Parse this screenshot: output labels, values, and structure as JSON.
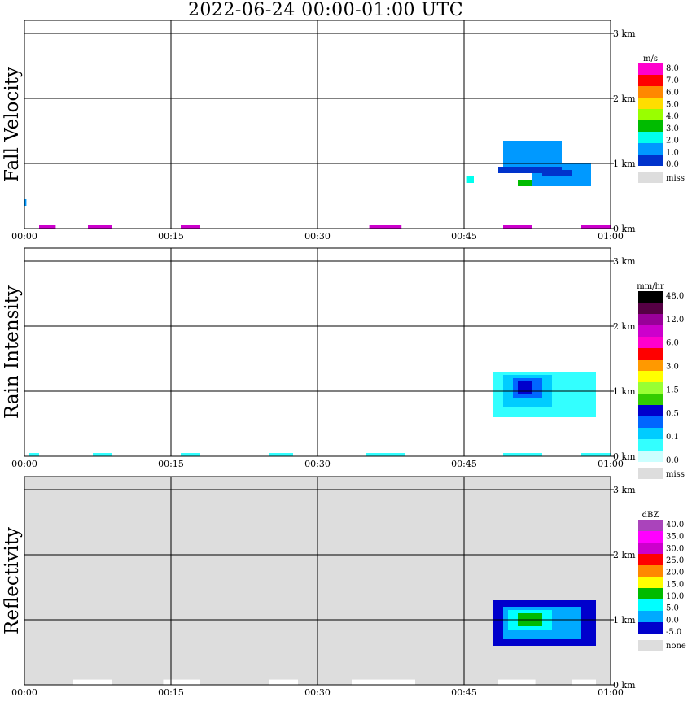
{
  "title": "2022-06-24   00:00-01:00 UTC",
  "chart_data": [
    {
      "type": "heatmap",
      "panel": "fall_velocity",
      "ylabel": "Fall Velocity",
      "x_ticks": [
        "00:00",
        "00:15",
        "00:30",
        "00:45",
        "01:00"
      ],
      "y_ticks": [
        "0 km",
        "1 km",
        "2 km",
        "3 km"
      ],
      "xlim": [
        0,
        60
      ],
      "ylim": [
        0,
        3.2
      ],
      "grid": true,
      "background": "#ffffff",
      "colorbar": {
        "unit": "m/s",
        "colors": [
          "#0033cc",
          "#0099ff",
          "#00ffee",
          "#00bb00",
          "#99ff00",
          "#ffdd00",
          "#ff8800",
          "#ff0000",
          "#ff00cc"
        ],
        "labels": [
          "0.0",
          "1.0",
          "2.0",
          "3.0",
          "4.0",
          "5.0",
          "6.0",
          "7.0",
          "8.0"
        ],
        "miss_color": "#dddddd",
        "miss_label": "miss"
      },
      "regions": [
        {
          "t": [
            49,
            55
          ],
          "h": [
            0.9,
            1.35
          ],
          "color": "#0099ff"
        },
        {
          "t": [
            52,
            58
          ],
          "h": [
            0.65,
            1.0
          ],
          "color": "#0099ff"
        },
        {
          "t": [
            48.5,
            55
          ],
          "h": [
            0.85,
            0.95
          ],
          "color": "#0033cc"
        },
        {
          "t": [
            53,
            56
          ],
          "h": [
            0.8,
            0.9
          ],
          "color": "#0033cc"
        },
        {
          "t": [
            50.5,
            52
          ],
          "h": [
            0.65,
            0.75
          ],
          "color": "#00bb00"
        },
        {
          "t": [
            45.3,
            46
          ],
          "h": [
            0.7,
            0.8
          ],
          "color": "#00ffee"
        },
        {
          "t": [
            0,
            0.2
          ],
          "h": [
            0.35,
            0.45
          ],
          "color": "#0099ff"
        },
        {
          "t": [
            1.5,
            3.2
          ],
          "h": [
            0,
            0.05
          ],
          "color": "#cc00cc"
        },
        {
          "t": [
            6.5,
            9
          ],
          "h": [
            0,
            0.05
          ],
          "color": "#cc00cc"
        },
        {
          "t": [
            16,
            18
          ],
          "h": [
            0,
            0.05
          ],
          "color": "#cc00cc"
        },
        {
          "t": [
            35.3,
            38.6
          ],
          "h": [
            0,
            0.05
          ],
          "color": "#cc00cc"
        },
        {
          "t": [
            49,
            52
          ],
          "h": [
            0,
            0.05
          ],
          "color": "#cc00cc"
        },
        {
          "t": [
            57,
            60
          ],
          "h": [
            0,
            0.05
          ],
          "color": "#cc00cc"
        }
      ]
    },
    {
      "type": "heatmap",
      "panel": "rain_intensity",
      "ylabel": "Rain Intensity",
      "x_ticks": [
        "00:00",
        "00:15",
        "00:30",
        "00:45",
        "01:00"
      ],
      "y_ticks": [
        "0 km",
        "1 km",
        "2 km",
        "3 km"
      ],
      "xlim": [
        0,
        60
      ],
      "ylim": [
        0,
        3.2
      ],
      "grid": true,
      "background": "#ffffff",
      "colorbar": {
        "unit": "mm/hr",
        "colors": [
          "#ccffff",
          "#33ffff",
          "#00ccff",
          "#0066ff",
          "#0000cc",
          "#33cc00",
          "#99ff33",
          "#ffff00",
          "#ff9900",
          "#ff0000",
          "#ff00cc",
          "#cc00cc",
          "#990099",
          "#550044",
          "#000000"
        ],
        "labels": [
          "0.0",
          "0.1",
          "0.5",
          "1.5",
          "3.0",
          "6.0",
          "12.0",
          "48.0"
        ],
        "miss_color": "#dddddd",
        "miss_label": "miss"
      },
      "regions": [
        {
          "t": [
            48,
            58.5
          ],
          "h": [
            0.6,
            1.3
          ],
          "color": "#33ffff"
        },
        {
          "t": [
            49,
            54
          ],
          "h": [
            0.75,
            1.25
          ],
          "color": "#00ccff"
        },
        {
          "t": [
            50,
            53
          ],
          "h": [
            0.9,
            1.2
          ],
          "color": "#0066ff"
        },
        {
          "t": [
            50.5,
            52
          ],
          "h": [
            0.95,
            1.15
          ],
          "color": "#0000cc"
        },
        {
          "t": [
            0.5,
            1.5
          ],
          "h": [
            0,
            0.05
          ],
          "color": "#33ffff"
        },
        {
          "t": [
            7,
            9
          ],
          "h": [
            0,
            0.05
          ],
          "color": "#33ffff"
        },
        {
          "t": [
            16,
            18
          ],
          "h": [
            0,
            0.05
          ],
          "color": "#33ffff"
        },
        {
          "t": [
            25,
            27.5
          ],
          "h": [
            0,
            0.05
          ],
          "color": "#33ffff"
        },
        {
          "t": [
            35,
            39
          ],
          "h": [
            0,
            0.05
          ],
          "color": "#33ffff"
        },
        {
          "t": [
            49,
            53
          ],
          "h": [
            0,
            0.05
          ],
          "color": "#33ffff"
        },
        {
          "t": [
            57,
            60
          ],
          "h": [
            0,
            0.05
          ],
          "color": "#33ffff"
        }
      ]
    },
    {
      "type": "heatmap",
      "panel": "reflectivity",
      "ylabel": "Reflectivity",
      "x_ticks": [
        "00:00",
        "00:15",
        "00:30",
        "00:45",
        "01:00"
      ],
      "y_ticks": [
        "0 km",
        "1 km",
        "2 km",
        "3 km"
      ],
      "xlim": [
        0,
        60
      ],
      "ylim": [
        0,
        3.2
      ],
      "grid": true,
      "background": "#dddddd",
      "colorbar": {
        "unit": "dBZ",
        "colors": [
          "#0000cc",
          "#00aaff",
          "#00ffff",
          "#00bb00",
          "#ffff00",
          "#ff8800",
          "#ff0000",
          "#cc00cc",
          "#ff00ff",
          "#aa44bb"
        ],
        "labels": [
          "-5.0",
          "0.0",
          "5.0",
          "10.0",
          "15.0",
          "20.0",
          "25.0",
          "30.0",
          "35.0",
          "40.0"
        ],
        "miss_color": "#dddddd",
        "miss_label": "none"
      },
      "regions": [
        {
          "t": [
            48,
            58.5
          ],
          "h": [
            0.6,
            1.3
          ],
          "color": "#0000cc"
        },
        {
          "t": [
            49,
            57
          ],
          "h": [
            0.7,
            1.2
          ],
          "color": "#00aaff"
        },
        {
          "t": [
            49.5,
            54
          ],
          "h": [
            0.85,
            1.15
          ],
          "color": "#00ffff"
        },
        {
          "t": [
            50.5,
            53
          ],
          "h": [
            0.9,
            1.1
          ],
          "color": "#00bb00"
        },
        {
          "t": [
            5,
            9
          ],
          "h": [
            0,
            0.08
          ],
          "color": "#ffffff"
        },
        {
          "t": [
            14.2,
            18
          ],
          "h": [
            0,
            0.08
          ],
          "color": "#ffffff"
        },
        {
          "t": [
            25,
            28
          ],
          "h": [
            0,
            0.08
          ],
          "color": "#ffffff"
        },
        {
          "t": [
            33.5,
            40
          ],
          "h": [
            0,
            0.08
          ],
          "color": "#ffffff"
        },
        {
          "t": [
            48.5,
            52.3
          ],
          "h": [
            0,
            0.08
          ],
          "color": "#ffffff"
        },
        {
          "t": [
            56,
            58.5
          ],
          "h": [
            0,
            0.08
          ],
          "color": "#ffffff"
        }
      ]
    }
  ]
}
